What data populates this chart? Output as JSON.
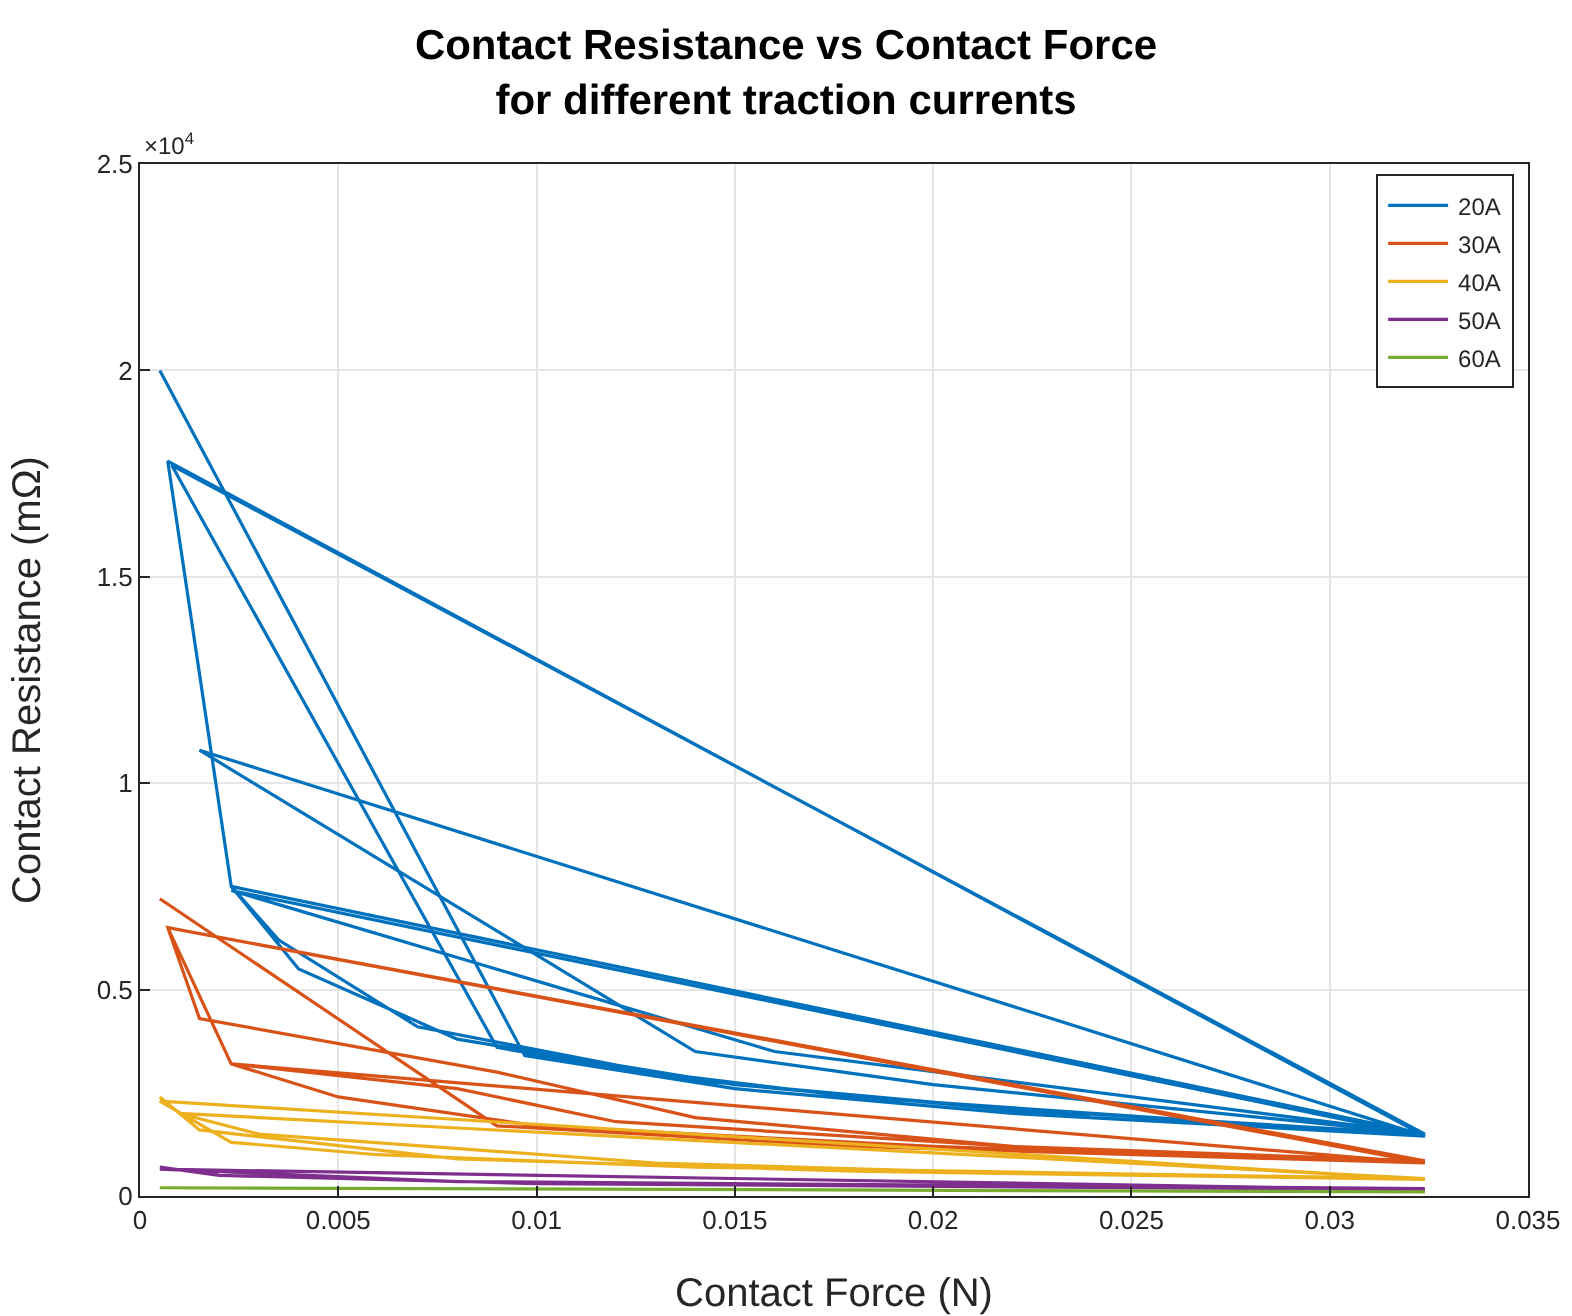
{
  "chart_data": {
    "type": "line",
    "title": "Contact Resistance vs Contact Force\nfor different traction currents",
    "xlabel": "Contact Force (N)",
    "ylabel": "Contact Resistance (mΩ)",
    "annotations": [
      "×10$^{4}$"
    ],
    "xlim": [
      0,
      0.035
    ],
    "xticks": [
      0,
      0.005,
      0.01,
      0.015,
      0.02,
      0.025,
      0.03,
      0.035
    ],
    "ylim": [
      0,
      2.5
    ],
    "yticks": [
      0,
      0.5,
      1,
      1.5,
      2,
      2.5
    ],
    "grid": true,
    "legend": "top right",
    "line_style": "solid",
    "marker": "none",
    "series": [
      {
        "name": "20A",
        "color": "#0072bd",
        "x": [
          0.0005,
          0.0097,
          0.015,
          0.022,
          0.0324,
          0.0007,
          0.0023,
          0.0035,
          0.007,
          0.014,
          0.022,
          0.0324,
          0.0008,
          0.009,
          0.012,
          0.018,
          0.0324,
          0.0015,
          0.014,
          0.02,
          0.0324,
          0.0023,
          0.004,
          0.008,
          0.015,
          0.024,
          0.0324,
          0.0023,
          0.016,
          0.0324
        ],
        "values": [
          2.0,
          0.34,
          0.26,
          0.2,
          0.145,
          1.78,
          0.75,
          0.62,
          0.41,
          0.28,
          0.21,
          0.15,
          1.77,
          0.36,
          0.31,
          0.24,
          0.145,
          1.08,
          0.35,
          0.27,
          0.15,
          0.75,
          0.55,
          0.38,
          0.27,
          0.19,
          0.145,
          0.74,
          0.35,
          0.15
        ]
      },
      {
        "name": "30A",
        "color": "#d95319",
        "x": [
          0.0005,
          0.009,
          0.018,
          0.0324,
          0.0007,
          0.0015,
          0.009,
          0.014,
          0.022,
          0.0324,
          0.0007,
          0.0023,
          0.005,
          0.01,
          0.02,
          0.0324,
          0.0023,
          0.008,
          0.012,
          0.022,
          0.0324
        ],
        "values": [
          0.72,
          0.17,
          0.12,
          0.08,
          0.65,
          0.43,
          0.3,
          0.19,
          0.12,
          0.085,
          0.65,
          0.32,
          0.24,
          0.17,
          0.12,
          0.08,
          0.32,
          0.26,
          0.18,
          0.12,
          0.082
        ]
      },
      {
        "name": "40A",
        "color": "#edb120",
        "x": [
          0.0005,
          0.0015,
          0.008,
          0.018,
          0.0324,
          0.0005,
          0.0023,
          0.006,
          0.014,
          0.0324,
          0.001,
          0.003,
          0.013,
          0.022,
          0.0324
        ],
        "values": [
          0.24,
          0.16,
          0.09,
          0.06,
          0.04,
          0.23,
          0.13,
          0.1,
          0.07,
          0.042,
          0.2,
          0.15,
          0.08,
          0.055,
          0.04
        ]
      },
      {
        "name": "50A",
        "color": "#7e2f8e",
        "x": [
          0.0005,
          0.002,
          0.01,
          0.0324,
          0.0005,
          0.008,
          0.0324
        ],
        "values": [
          0.07,
          0.05,
          0.03,
          0.015,
          0.065,
          0.035,
          0.018
        ]
      },
      {
        "name": "60A",
        "color": "#77ac30",
        "x": [
          0.0005,
          0.0324
        ],
        "values": [
          0.02,
          0.01
        ]
      }
    ]
  }
}
